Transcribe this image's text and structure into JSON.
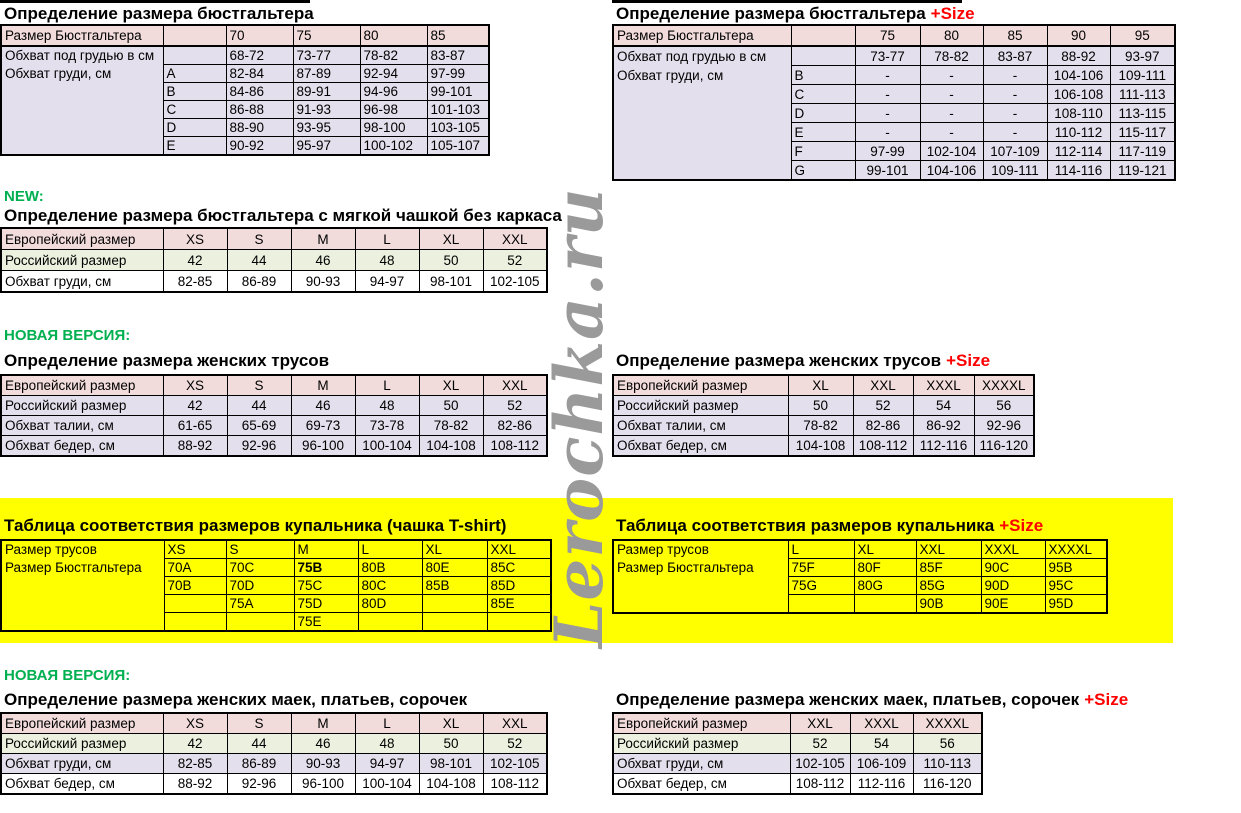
{
  "watermark": "Lerochka.ru",
  "labels": {
    "new": "NEW:",
    "new_version": "НОВАЯ ВЕРСИЯ:"
  },
  "colors": {
    "header_blue": "#DCE6F1",
    "underbust_pink": "#F2DCDB",
    "lavender": "#E4DFEC",
    "light_green": "#EBF1DE",
    "highlight_yellow": "#FFFF00",
    "accent_green": "#00B050",
    "accent_red": "#FF0000",
    "watermark_gray": "#9a9a9a"
  },
  "tables": {
    "bra_left": {
      "title": "Определение размера бюстгальтера",
      "rows": [
        [
          "Размер Бюстгальтера",
          "",
          "70",
          "75",
          "80",
          "85"
        ],
        [
          "Обхват под грудью в см",
          "",
          "68-72",
          "73-77",
          "78-82",
          "83-87"
        ],
        [
          "Обхват груди, см",
          "A",
          "82-84",
          "87-89",
          "92-94",
          "97-99"
        ],
        [
          "",
          "B",
          "84-86",
          "89-91",
          "94-96",
          "99-101"
        ],
        [
          "",
          "C",
          "86-88",
          "91-93",
          "96-98",
          "101-103"
        ],
        [
          "",
          "D",
          "88-90",
          "93-95",
          "98-100",
          "103-105"
        ],
        [
          "",
          "E",
          "90-92",
          "95-97",
          "100-102",
          "105-107"
        ]
      ]
    },
    "bra_right": {
      "title": "Определение размера бюстгальтера",
      "title_suffix": "+Size",
      "rows": [
        [
          "Размер Бюстгальтера",
          "",
          "75",
          "80",
          "85",
          "90",
          "95"
        ],
        [
          "Обхват под грудью в см",
          "",
          "73-77",
          "78-82",
          "83-87",
          "88-92",
          "93-97"
        ],
        [
          "Обхват груди, см",
          "B",
          "-",
          "-",
          "-",
          "104-106",
          "109-111"
        ],
        [
          "",
          "C",
          "-",
          "-",
          "-",
          "106-108",
          "111-113"
        ],
        [
          "",
          "D",
          "-",
          "-",
          "-",
          "108-110",
          "113-115"
        ],
        [
          "",
          "E",
          "-",
          "-",
          "-",
          "110-112",
          "115-117"
        ],
        [
          "",
          "F",
          "97-99",
          "102-104",
          "107-109",
          "112-114",
          "117-119"
        ],
        [
          "",
          "G",
          "99-101",
          "104-106",
          "109-111",
          "114-116",
          "119-121"
        ]
      ]
    },
    "soft_cup": {
      "title": "Определение размера бюстгальтера с мягкой чашкой без каркаса",
      "rows": [
        [
          "Европейский размер",
          "XS",
          "S",
          "M",
          "L",
          "XL",
          "XXL"
        ],
        [
          "Российский размер",
          "42",
          "44",
          "46",
          "48",
          "50",
          "52"
        ],
        [
          "Обхват груди, см",
          "82-85",
          "86-89",
          "90-93",
          "94-97",
          "98-101",
          "102-105"
        ]
      ]
    },
    "trusy_left": {
      "title": "Определение размера женских трусов",
      "rows": [
        [
          "Европейский размер",
          "XS",
          "S",
          "M",
          "L",
          "XL",
          "XXL"
        ],
        [
          "Российский размер",
          "42",
          "44",
          "46",
          "48",
          "50",
          "52"
        ],
        [
          "Обхват талии, см",
          "61-65",
          "65-69",
          "69-73",
          "73-78",
          "78-82",
          "82-86"
        ],
        [
          "Обхват бедер, см",
          "88-92",
          "92-96",
          "96-100",
          "100-104",
          "104-108",
          "108-112"
        ]
      ]
    },
    "trusy_right": {
      "title": "Определение размера женских трусов",
      "title_suffix": "+Size",
      "rows": [
        [
          "Европейский размер",
          "XL",
          "XXL",
          "XXXL",
          "XXXXL"
        ],
        [
          "Российский размер",
          "50",
          "52",
          "54",
          "56"
        ],
        [
          "Обхват талии, см",
          "78-82",
          "82-86",
          "86-92",
          "92-96"
        ],
        [
          "Обхват бедер, см",
          "104-108",
          "108-112",
          "112-116",
          "116-120"
        ]
      ]
    },
    "kupalnik_left": {
      "title": "Таблица соответствия размеров купальника (чашка T-shirt)",
      "rows": [
        [
          "Размер трусов",
          "XS",
          "S",
          "M",
          "L",
          "XL",
          "XXL"
        ],
        [
          "Размер Бюстгальтера",
          "70A",
          "70C",
          "75B",
          "80B",
          "80E",
          "85C"
        ],
        [
          "",
          "70B",
          "70D",
          "75C",
          "80C",
          "85B",
          "85D"
        ],
        [
          "",
          "",
          "75A",
          "75D",
          "80D",
          "",
          "85E"
        ],
        [
          "",
          "",
          "",
          "75E",
          "",
          "",
          ""
        ]
      ]
    },
    "kupalnik_right": {
      "title": "Таблица соответствия размеров купальника",
      "title_suffix": "+Size",
      "rows": [
        [
          "Размер трусов",
          "L",
          "XL",
          "XXL",
          "XXXL",
          "XXXXL"
        ],
        [
          "Размер Бюстгальтера",
          "75F",
          "80F",
          "85F",
          "90C",
          "95B"
        ],
        [
          "",
          "75G",
          "80G",
          "85G",
          "90D",
          "95C"
        ],
        [
          "",
          "",
          "",
          "90B",
          "90E",
          "95D"
        ]
      ]
    },
    "maek_left": {
      "title": "Определение размера женских маек, платьев, сорочек",
      "rows": [
        [
          "Европейский размер",
          "XS",
          "S",
          "M",
          "L",
          "XL",
          "XXL"
        ],
        [
          "Российский размер",
          "42",
          "44",
          "46",
          "48",
          "50",
          "52"
        ],
        [
          "Обхват груди, см",
          "82-85",
          "86-89",
          "90-93",
          "94-97",
          "98-101",
          "102-105"
        ],
        [
          "Обхват бедер, см",
          "88-92",
          "92-96",
          "96-100",
          "100-104",
          "104-108",
          "108-112"
        ]
      ]
    },
    "maek_right": {
      "title": "Определение размера женских маек, платьев, сорочек",
      "title_suffix": "+Size",
      "rows": [
        [
          "Европейский размер",
          "XXL",
          "XXXL",
          "XXXXL"
        ],
        [
          "Российский размер",
          "52",
          "54",
          "56"
        ],
        [
          "Обхват груди, см",
          "102-105",
          "106-109",
          "110-113"
        ],
        [
          "Обхват бедер, см",
          "108-112",
          "112-116",
          "116-120"
        ]
      ]
    }
  }
}
